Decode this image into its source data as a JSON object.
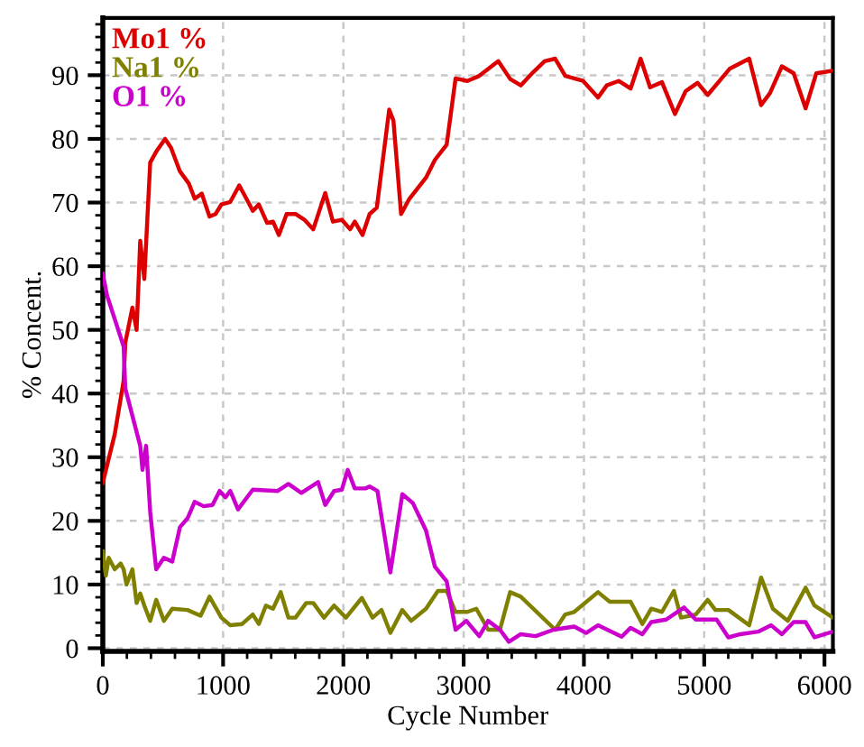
{
  "chart_data": {
    "type": "line",
    "xlabel": "Cycle Number",
    "ylabel": "% Concent.",
    "xlim": [
      0,
      6070
    ],
    "ylim": [
      -0.5,
      99
    ],
    "xticks": [
      0,
      1000,
      2000,
      3000,
      4000,
      5000,
      6000
    ],
    "yticks": [
      0,
      10,
      20,
      30,
      40,
      50,
      60,
      70,
      80,
      90
    ],
    "grid": true,
    "legend": "top left",
    "marker": "none",
    "line_style": "solid",
    "series": [
      {
        "name": "Mo1 %",
        "color": "#dd0000",
        "x": [
          0,
          99,
          173,
          187,
          246,
          281,
          311,
          345,
          394,
          444,
          518,
          567,
          641,
          715,
          764,
          823,
          887,
          937,
          986,
          1060,
          1134,
          1208,
          1247,
          1297,
          1366,
          1415,
          1464,
          1528,
          1602,
          1676,
          1750,
          1849,
          1913,
          1987,
          2056,
          2095,
          2159,
          2218,
          2278,
          2381,
          2416,
          2480,
          2549,
          2687,
          2761,
          2859,
          2933,
          3031,
          3130,
          3288,
          3387,
          3475,
          3574,
          3673,
          3761,
          3845,
          3993,
          4117,
          4190,
          4289,
          4388,
          4471,
          4550,
          4649,
          4757,
          4846,
          4945,
          5029,
          5211,
          5374,
          5473,
          5547,
          5646,
          5744,
          5843,
          5932,
          6070
        ],
        "values": [
          26,
          33.6,
          42,
          48,
          53.5,
          50,
          64,
          58,
          76.3,
          78,
          80,
          78.6,
          74.9,
          73,
          70.6,
          71.4,
          67.8,
          68.2,
          69.7,
          70.1,
          72.7,
          70.1,
          68.7,
          69.7,
          66.8,
          67,
          64.9,
          68.2,
          68.2,
          67.3,
          65.8,
          71.5,
          67,
          67.3,
          65.8,
          67,
          64.9,
          68.2,
          69.2,
          84.6,
          82.9,
          68.2,
          70.6,
          73.9,
          76.7,
          79.1,
          89.5,
          89.1,
          89.9,
          92.2,
          89.4,
          88.4,
          90.4,
          92.2,
          92.6,
          89.9,
          89.1,
          86.5,
          88.4,
          89.1,
          87.9,
          92.6,
          88.1,
          88.9,
          83.9,
          87.5,
          88.8,
          86.9,
          91,
          92.6,
          85.3,
          87.2,
          91.4,
          90.3,
          84.8,
          90.3,
          90.7
        ]
      },
      {
        "name": "Na1 %",
        "color": "#808000",
        "x": [
          0,
          25,
          49,
          99,
          148,
          173,
          197,
          246,
          281,
          311,
          345,
          394,
          444,
          508,
          577,
          704,
          813,
          887,
          986,
          1060,
          1158,
          1247,
          1297,
          1356,
          1415,
          1479,
          1543,
          1602,
          1691,
          1750,
          1839,
          1923,
          2021,
          2154,
          2243,
          2317,
          2391,
          2490,
          2564,
          2687,
          2786,
          2859,
          2933,
          3031,
          3105,
          3204,
          3302,
          3386,
          3475,
          3761,
          3845,
          3919,
          4117,
          4215,
          4388,
          4486,
          4560,
          4649,
          4748,
          4807,
          4930,
          5029,
          5093,
          5201,
          5374,
          5473,
          5571,
          5695,
          5843,
          5917,
          6070
        ],
        "values": [
          15.2,
          11.4,
          14.2,
          12.4,
          13.3,
          12.4,
          10,
          12.4,
          7.1,
          8.6,
          6.7,
          4.3,
          7.6,
          4.3,
          6.2,
          6,
          5.1,
          8.1,
          4.8,
          3.6,
          3.8,
          5.3,
          3.8,
          6.7,
          6.2,
          8.8,
          4.8,
          4.8,
          7.1,
          7.1,
          4.8,
          6.7,
          4.8,
          7.9,
          4.8,
          6,
          2.4,
          6,
          4.3,
          6.2,
          9,
          9,
          5.7,
          5.7,
          6.2,
          2.9,
          2.9,
          8.8,
          8.1,
          2.9,
          5.3,
          5.7,
          8.8,
          7.3,
          7.3,
          3.8,
          6.2,
          5.7,
          9,
          4.8,
          5.3,
          7.6,
          6,
          6,
          3.6,
          11.1,
          6.2,
          4.3,
          9.5,
          6.7,
          4.8
        ]
      },
      {
        "name": "O1 %",
        "color": "#cc00cc",
        "x": [
          0,
          35,
          99,
          173,
          187,
          246,
          311,
          330,
          360,
          394,
          444,
          508,
          577,
          641,
          704,
          764,
          838,
          912,
          971,
          1020,
          1060,
          1124,
          1247,
          1454,
          1543,
          1651,
          1790,
          1849,
          1923,
          1987,
          2036,
          2095,
          2184,
          2218,
          2283,
          2391,
          2490,
          2578,
          2687,
          2761,
          2859,
          2933,
          3022,
          3130,
          3204,
          3302,
          3376,
          3475,
          3599,
          3747,
          3919,
          4018,
          4117,
          4314,
          4388,
          4486,
          4560,
          4684,
          4832,
          4930,
          5103,
          5201,
          5300,
          5448,
          5557,
          5646,
          5744,
          5843,
          5917,
          6070
        ],
        "values": [
          58.8,
          55.4,
          51.7,
          47.4,
          40.8,
          36.5,
          31.8,
          28,
          31.8,
          21.4,
          12.4,
          14.2,
          13.6,
          19,
          20.4,
          23,
          22.3,
          22.5,
          24.7,
          23.7,
          24.7,
          21.8,
          24.9,
          24.7,
          25.8,
          24.4,
          26.1,
          22.5,
          24.7,
          24.9,
          28,
          25.1,
          25.1,
          25.4,
          24.7,
          11.9,
          24.2,
          22.8,
          18.5,
          12.8,
          10.5,
          2.9,
          4.3,
          1.9,
          4.3,
          2.9,
          1,
          2.2,
          1.9,
          2.9,
          3.4,
          2.4,
          3.6,
          1.8,
          3.2,
          2.2,
          4.1,
          4.5,
          6.4,
          4.5,
          4.5,
          1.7,
          2.2,
          2.6,
          3.6,
          2.2,
          4.1,
          4.1,
          1.7,
          2.6
        ]
      }
    ]
  }
}
